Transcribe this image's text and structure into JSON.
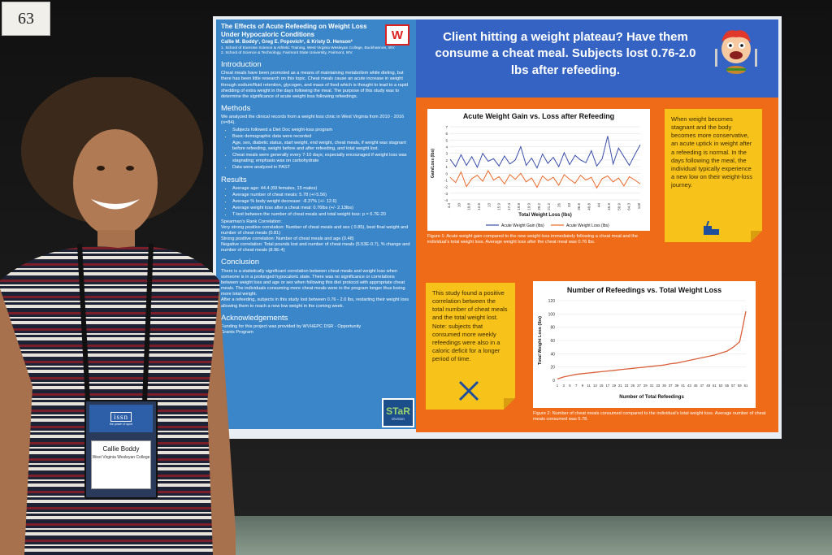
{
  "booth_number": "63",
  "poster": {
    "title": "The Effects of Acute Refeeding on Weight Loss Under Hypocaloric Conditions",
    "authors": "Callie M. Boddy¹, Greg E. Popovich¹, & Kristy D. Henson²",
    "affiliation1": "1. School of Exercise Science & Athletic Training, West Virginia Wesleyan College, Buckhannon, WV.",
    "affiliation2": "2. School of Science & Technology, Fairmont State University, Fairmont, WV.",
    "wv_logo": "W",
    "headline": "Client hitting a weight plateau? Have them consume a cheat meal. Subjects lost 0.76-2.0 lbs after refeeding.",
    "sections": {
      "introduction": {
        "heading": "Introduction",
        "text": "Cheat meals have been promoted as a means of maintaining metabolism while dieting, but there has been little research on this topic. Cheat meals cause an acute increase in weight through sodium/fluid retention, glycogen, and mass of food which is thought to lead to a rapid shedding of extra weight in the days following the meal. The purpose of this study was to determine the significance of acute weight loss following refeedings."
      },
      "methods": {
        "heading": "Methods",
        "intro": "We analyzed the clinical records from a weight loss clinic in West Virginia from 2010 - 2016 (n=84).",
        "bullets": [
          "Subjects followed a Diet Doc weight-loss program",
          "Basic demographic data were recorded",
          "Age, sex, diabetic status, start weight, end weight, cheat meals, if weight was stagnant before refeeding, weight before and after refeeding, and total weight lost.",
          "Cheat meals were generally every 7-10 days; especially encouraged if weight loss was stagnating; emphasis was on carbohydrate",
          "Data were analyzed in PAST"
        ]
      },
      "results": {
        "heading": "Results",
        "bullets": [
          "Average age: 44.4 (69 females, 15 males)",
          "Average number of cheat meals: 5.78 (+/-5.56)",
          "Average % body weight decrease: -8.37% (+/- 12.6)",
          "Average weight loss after a cheat meal: 0.76lbs (+/- 2.13lbs)",
          "T-test between the number of cheat meals and total weight loss: p = 6.7E-20"
        ],
        "spearman_heading": "Spearman's Rank Correlation:",
        "spearman_lines": [
          "Very strong positive correlation: Number of cheat meals and sex ( 0.85), best final weight and number of cheat meals (0.81)",
          "Strong positive correlation: Number of cheat meals and age (0.48)",
          "Negative correlation: Total pounds lost and number of cheat meals (5.53E-0.7), % change and number of cheat meals (8.9E-4)"
        ]
      },
      "conclusion": {
        "heading": "Conclusion",
        "text": "There is a statistically significant correlation between cheat meals and weight loss when someone is in a prolonged hypocaloric state. There was no significance or correlations between weight loss and age or sex when following this diet protocol with appropriate cheat meals. The individuals consuming more cheat meals were in the program longer thus losing more total weight.",
        "text2": "After a refeeding, subjects in this study lost between 0.76 - 2.0 lbs, restarting their weight loss allowing them to reach a new low weight in the coming week."
      },
      "acknowledgements": {
        "heading": "Acknowledgements",
        "text": "Funding for this project was provided by WVHEPC DSR - Opportunity Grants Program"
      }
    },
    "star_logo": {
      "title": "STaR",
      "subtitle": "Division"
    },
    "note1": "When weight becomes stagnant and the body becomes more conservative, an acute uptick in weight after a refeeding is normal. In the days following the meal, the individual typically experience a new low on their weight-loss journey.",
    "note2": "This study found a positive correlation between the total number of cheat meals and the total weight lost. Note: subjects that consumed more weekly refeedings were also in a caloric deficit for a longer period of time.",
    "figure1_caption": "Figure 1: Acute weight gain compared to the new weight loss immediately following a cheat meal and the individual's total weight loss. Average weight loss after the cheat meal was 0.76 lbs.",
    "figure2_caption": "Figure 2: Number of cheat meals consumed compared to the individual's total weight loss. Average number of cheat meals consumed was 5.78.",
    "colors": {
      "left_panel": "#3a86c8",
      "header": "#3563c4",
      "orange_panel": "#f06b18",
      "note": "#f7c31b",
      "series_gain": "#3b4fa8",
      "series_loss": "#e86a2c",
      "series_refeed": "#d9603a"
    }
  },
  "badge": {
    "logo": "issn",
    "logo_sub": "the power of sport",
    "name": "Callie Boddy",
    "school": "West Virginia Wesleyan College"
  },
  "chart_data": [
    {
      "type": "line",
      "title": "Acute Weight Gain vs. Loss after Refeeding",
      "xlabel": "Total Weight Loss (lbs)",
      "ylabel": "Gain/Loss (lbs)",
      "ylim": [
        -4,
        7
      ],
      "yticks": [
        "-4",
        "-3",
        "-2",
        "-1",
        "0",
        "1",
        "2",
        "3",
        "4",
        "5",
        "6",
        "7"
      ],
      "xticks": [
        "4.4",
        "10",
        "10.8",
        "12.6",
        "13",
        "15.9",
        "17.4",
        "19.8",
        "19.9",
        "20.2",
        "21.2",
        "26",
        "33",
        "36.6",
        "40.8",
        "44",
        "45.9",
        "50.9",
        "64.3",
        "118"
      ],
      "legend_position": "bottom",
      "series": [
        {
          "name": "Acute Weight Gain (lbs)",
          "values": [
            2.1,
            1.0,
            2.8,
            1.2,
            2.5,
            0.9,
            3.0,
            1.8,
            2.2,
            1.1,
            2.6,
            1.4,
            2.0,
            4.0,
            1.2,
            2.3,
            0.8,
            2.9,
            1.5,
            2.4,
            1.0,
            3.1,
            1.3,
            2.7,
            2.0,
            1.6,
            3.4,
            1.1,
            2.2,
            5.6,
            1.4,
            3.8,
            2.5,
            1.2,
            2.8,
            4.3
          ]
        },
        {
          "name": "Acute Weight Loss (lbs)",
          "values": [
            -0.6,
            -1.4,
            0.2,
            -2.0,
            -0.8,
            -0.3,
            -1.2,
            0.4,
            -1.0,
            -0.5,
            -1.6,
            -0.2,
            -0.9,
            0.0,
            -1.3,
            -0.7,
            -2.1,
            -0.4,
            -1.1,
            -0.6,
            -1.8,
            -0.2,
            -0.9,
            -1.5,
            -0.3,
            -1.0,
            -0.6,
            -2.2,
            -0.8,
            -0.4,
            -1.3,
            -0.7,
            -1.9,
            -0.5,
            -1.0,
            -1.6
          ]
        }
      ]
    },
    {
      "type": "line",
      "title": "Number of Refeedings vs. Total Weight Loss",
      "xlabel": "Number of Total Refeedings",
      "ylabel": "Total Weight Loss (lbs)",
      "ylim": [
        0,
        120
      ],
      "yticks": [
        "0",
        "20",
        "40",
        "60",
        "80",
        "100",
        "120"
      ],
      "xticks": [
        "1",
        "3",
        "5",
        "7",
        "9",
        "11",
        "13",
        "15",
        "17",
        "19",
        "21",
        "23",
        "25",
        "27",
        "29",
        "31",
        "33",
        "35",
        "37",
        "39",
        "41",
        "43",
        "45",
        "47",
        "49",
        "51",
        "53",
        "55",
        "57",
        "59",
        "61"
      ],
      "series": [
        {
          "name": "",
          "x": [
            1,
            3,
            5,
            7,
            9,
            11,
            13,
            15,
            17,
            19,
            21,
            23,
            25,
            27,
            29,
            31,
            33,
            35,
            37,
            39,
            41,
            43,
            45,
            47,
            49,
            51,
            53,
            55,
            57,
            59,
            60,
            61
          ],
          "values": [
            2,
            5,
            7,
            9,
            10,
            11,
            12,
            13,
            14,
            15,
            16,
            17,
            18,
            19,
            20,
            21,
            22,
            23,
            25,
            26,
            28,
            30,
            32,
            34,
            36,
            38,
            41,
            44,
            50,
            58,
            80,
            104
          ]
        }
      ]
    }
  ]
}
